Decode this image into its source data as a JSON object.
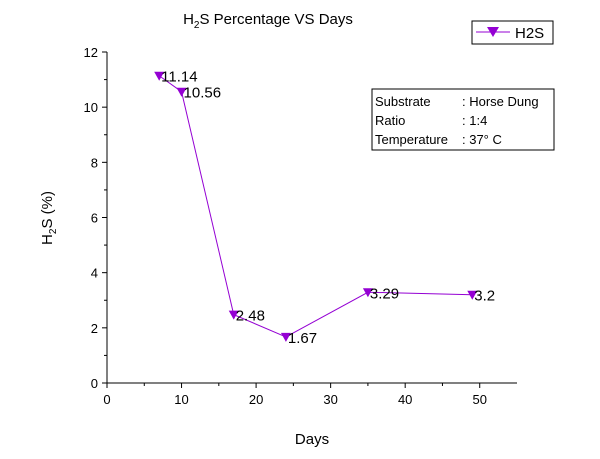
{
  "chart_data": {
    "type": "line",
    "title": {
      "prefix": "H",
      "subscript": "2",
      "suffix": "S Percentage VS Days"
    },
    "xlabel": "Days",
    "ylabel": {
      "prefix": "H",
      "subscript": "2",
      "suffix": "S (%)"
    },
    "xlim": [
      0,
      55
    ],
    "ylim": [
      0,
      12
    ],
    "xticks": [
      0,
      10,
      20,
      30,
      40,
      50
    ],
    "yticks": [
      0,
      2,
      4,
      6,
      8,
      10,
      12
    ],
    "grid": false,
    "legend": "top-right",
    "series": [
      {
        "name": "H2S",
        "color": "#9400d3",
        "marker": "triangle-down",
        "x": [
          7,
          10,
          17,
          24,
          35,
          49
        ],
        "y": [
          11.14,
          10.56,
          2.48,
          1.67,
          3.29,
          3.2
        ],
        "labels": [
          "11.14",
          "10.56",
          "2.48",
          "1.67",
          "3.29",
          "3.2"
        ]
      }
    ],
    "info_box": [
      {
        "key": "Substrate",
        "value": ": Horse Dung"
      },
      {
        "key": "Ratio",
        "value": ": 1:4"
      },
      {
        "key": "Temperature",
        "value": ": 37° C"
      }
    ]
  }
}
